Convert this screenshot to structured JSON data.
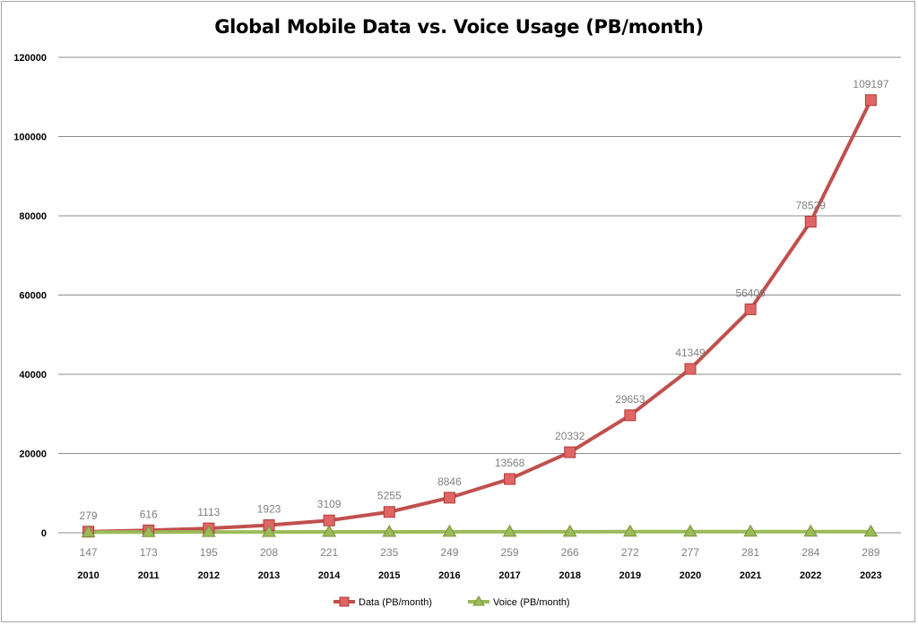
{
  "chart_data": {
    "type": "line",
    "title": "Global Mobile Data vs. Voice Usage (PB/month)",
    "xlabel": "",
    "ylabel": "",
    "categories": [
      "2010",
      "2011",
      "2012",
      "2013",
      "2014",
      "2015",
      "2016",
      "2017",
      "2018",
      "2019",
      "2020",
      "2021",
      "2022",
      "2023"
    ],
    "ylim": [
      0,
      120000
    ],
    "yticks": [
      0,
      20000,
      40000,
      60000,
      80000,
      100000,
      120000
    ],
    "grid": true,
    "legend": "bottom",
    "series": [
      {
        "name": "Data (PB/month)",
        "color": "#c0504d",
        "marker": "square",
        "values": [
          279,
          616,
          1113,
          1923,
          3109,
          5255,
          8846,
          13568,
          20332,
          29653,
          41349,
          56400,
          78529,
          109197
        ]
      },
      {
        "name": "Voice (PB/month)",
        "color": "#9bbb59",
        "marker": "triangle",
        "values": [
          147,
          173,
          195,
          208,
          221,
          235,
          249,
          259,
          266,
          272,
          277,
          281,
          284,
          289
        ]
      }
    ]
  }
}
